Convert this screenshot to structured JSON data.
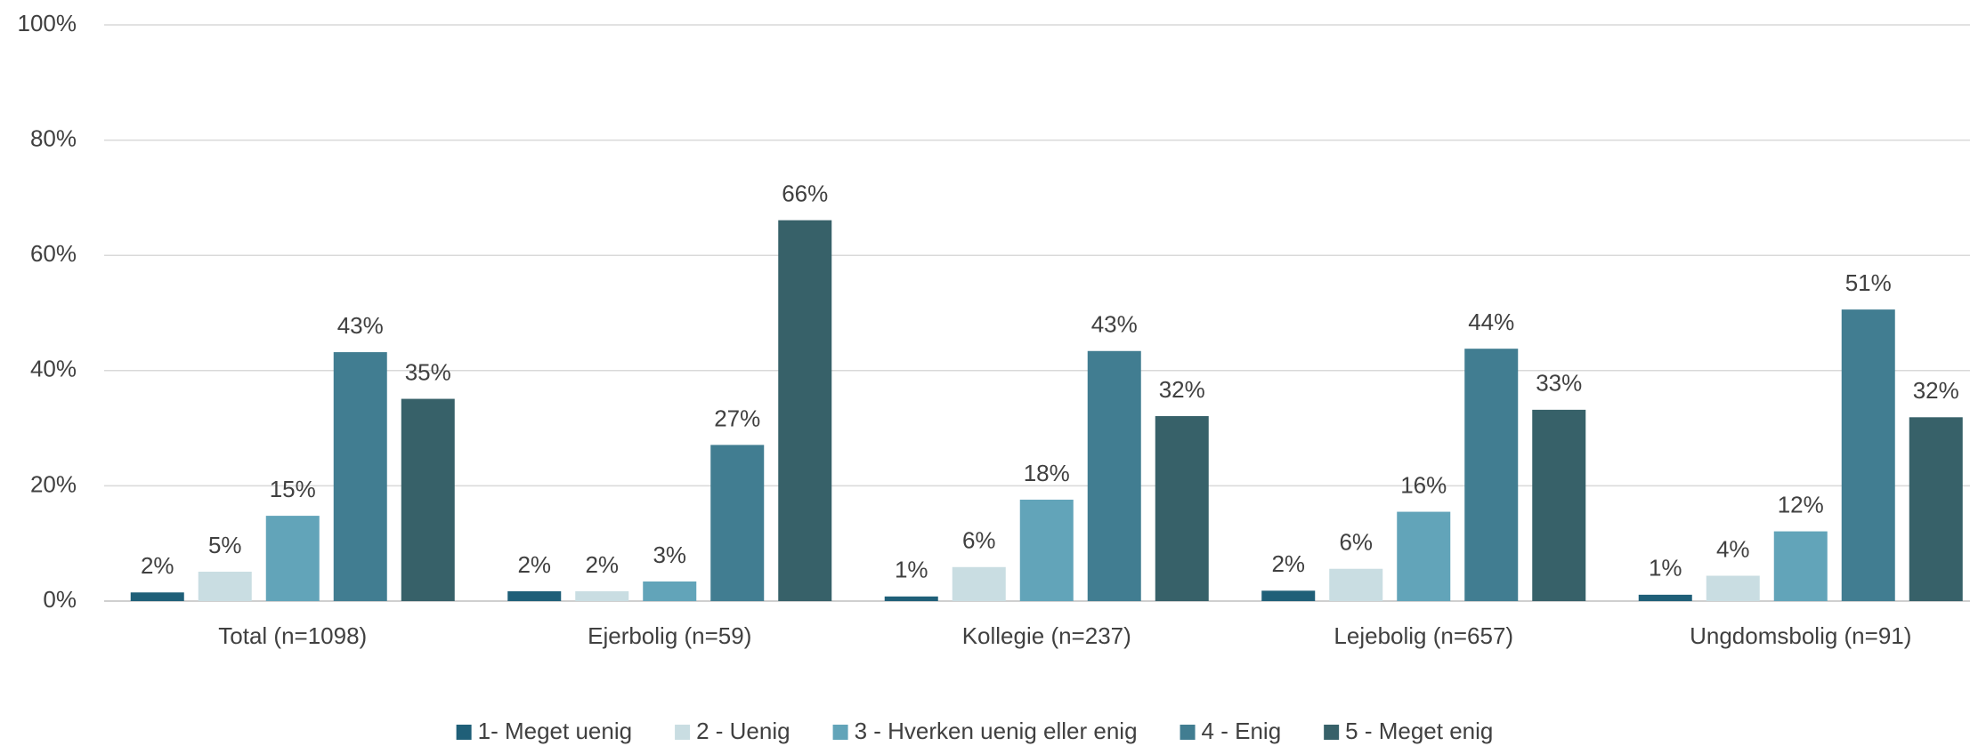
{
  "chart_data": {
    "type": "bar",
    "categories": [
      "Total (n=1098)",
      "Ejerbolig (n=59)",
      "Kollegie (n=237)",
      "Lejebolig (n=657)",
      "Ungdomsbolig (n=91)"
    ],
    "series": [
      {
        "name": "1- Meget uenig",
        "color": "#1f5f78",
        "values": [
          1.5,
          1.7,
          0.8,
          1.8,
          1.1
        ],
        "value_labels": [
          "2%",
          "2%",
          "1%",
          "2%",
          "1%"
        ]
      },
      {
        "name": "2 - Uenig",
        "color": "#c9dde2",
        "values": [
          5.1,
          1.7,
          5.9,
          5.6,
          4.4
        ],
        "value_labels": [
          "5%",
          "2%",
          "6%",
          "6%",
          "4%"
        ]
      },
      {
        "name": "3 - Hverken uenig eller enig",
        "color": "#62a4b9",
        "values": [
          14.8,
          3.4,
          17.6,
          15.5,
          12.1
        ],
        "value_labels": [
          "15%",
          "3%",
          "18%",
          "16%",
          "12%"
        ]
      },
      {
        "name": "4 - Enig",
        "color": "#417d91",
        "values": [
          43.2,
          27.1,
          43.4,
          43.8,
          50.6
        ],
        "value_labels": [
          "43%",
          "27%",
          "43%",
          "44%",
          "51%"
        ]
      },
      {
        "name": "5 - Meget enig",
        "color": "#376169",
        "values": [
          35.1,
          66.1,
          32.1,
          33.2,
          31.9
        ],
        "value_labels": [
          "35%",
          "66%",
          "32%",
          "33%",
          "32%"
        ]
      }
    ],
    "ylim": [
      0,
      100
    ],
    "yticks": [
      {
        "value": 0,
        "label": "0%"
      },
      {
        "value": 20,
        "label": "20%"
      },
      {
        "value": 40,
        "label": "40%"
      },
      {
        "value": 60,
        "label": "60%"
      },
      {
        "value": 80,
        "label": "80%"
      },
      {
        "value": 100,
        "label": "100%"
      }
    ],
    "grid": true,
    "legend": "bottom"
  }
}
